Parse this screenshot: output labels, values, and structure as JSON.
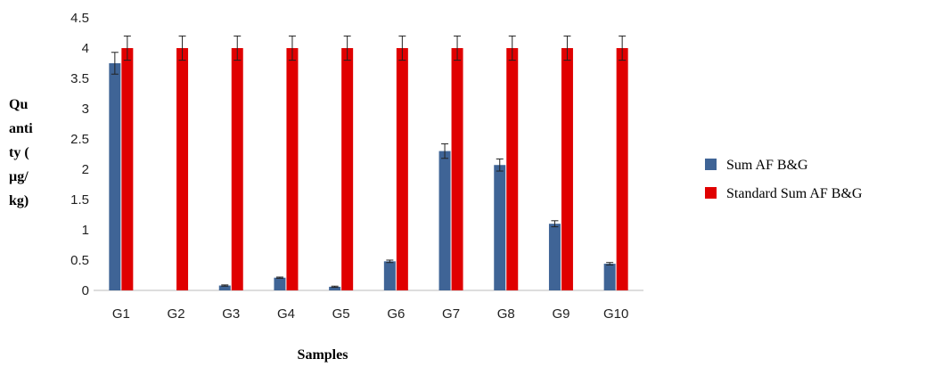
{
  "chart_data": {
    "type": "bar",
    "title": "",
    "xlabel": "Samples",
    "ylabel_lines": [
      "Qu",
      "anti",
      "ty (",
      "µg/",
      "kg)"
    ],
    "categories": [
      "G1",
      "G2",
      "G3",
      "G4",
      "G5",
      "G6",
      "G7",
      "G8",
      "G9",
      "G10"
    ],
    "ylim": [
      0,
      4.5
    ],
    "yticks": [
      "0",
      "0.5",
      "1",
      "1.5",
      "2",
      "2.5",
      "3",
      "3.5",
      "4",
      "4.5"
    ],
    "grid": false,
    "legend_position": "right",
    "series": [
      {
        "name": "Sum AF B&G",
        "color": "#3f6496",
        "values": [
          3.75,
          0,
          0.08,
          0.21,
          0.06,
          0.48,
          2.3,
          2.07,
          1.1,
          0.44
        ],
        "errors": [
          0.18,
          0,
          0.01,
          0.01,
          0.01,
          0.02,
          0.12,
          0.1,
          0.05,
          0.02
        ]
      },
      {
        "name": "Standard Sum AF B&G",
        "color": "#e00000",
        "values": [
          4,
          4,
          4,
          4,
          4,
          4,
          4,
          4,
          4,
          4
        ],
        "errors": [
          0.2,
          0.2,
          0.2,
          0.2,
          0.2,
          0.2,
          0.2,
          0.2,
          0.2,
          0.2
        ]
      }
    ]
  }
}
